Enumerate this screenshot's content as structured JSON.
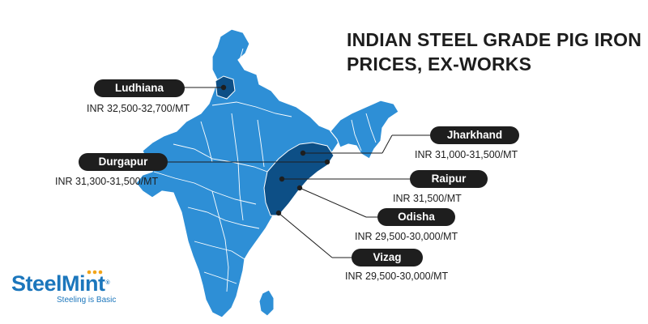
{
  "title": {
    "line1": "INDIAN STEEL GRADE PIG IRON",
    "line2": "PRICES, EX-WORKS"
  },
  "locations": [
    {
      "id": "ludhiana",
      "name": "Ludhiana",
      "price": "INR 32,500-32,700/MT"
    },
    {
      "id": "jharkhand",
      "name": "Jharkhand",
      "price": "INR 31,000-31,500/MT"
    },
    {
      "id": "durgapur",
      "name": "Durgapur",
      "price": "INR 31,300-31,500/MT"
    },
    {
      "id": "raipur",
      "name": "Raipur",
      "price": "INR 31,500/MT"
    },
    {
      "id": "odisha",
      "name": "Odisha",
      "price": "INR  29,500-30,000/MT"
    },
    {
      "id": "vizag",
      "name": "Vizag",
      "price": "INR 29,500-30,000/MT"
    }
  ],
  "logo": {
    "brand": "SteelMint",
    "tagline": "Steeling is Basic",
    "registered": "®"
  },
  "colors": {
    "map_fill": "#2e8fd6",
    "map_highlight": "#0d4f86",
    "map_border": "#ffffff",
    "pill": "#1e1e1e",
    "brand": "#1b76bc",
    "brand_accent": "#f2a51a"
  }
}
